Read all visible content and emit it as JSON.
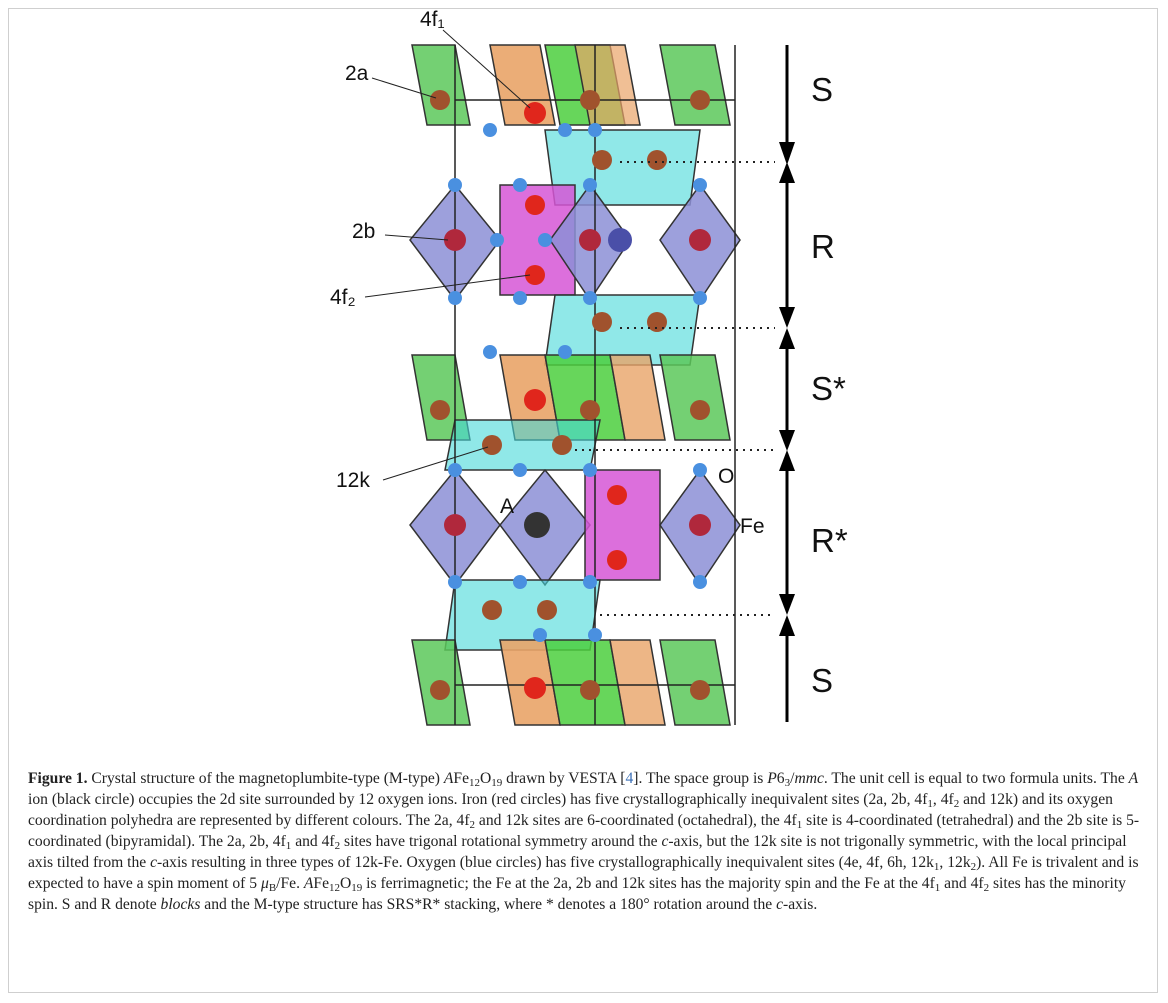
{
  "figure": {
    "site_labels": [
      "4f₁",
      "2a",
      "2b",
      "4f₂",
      "12k",
      "A",
      "O",
      "Fe"
    ],
    "block_labels": [
      "S",
      "R",
      "S*",
      "R*",
      "S"
    ],
    "caption": [
      {
        "text": "Figure 1.",
        "style": "b"
      },
      " Crystal structure of the magnetoplumbite-type (M-type) ",
      {
        "text": "A",
        "style": "i"
      },
      "Fe",
      {
        "text": "12",
        "style": "sub"
      },
      "O",
      {
        "text": "19",
        "style": "sub"
      },
      " drawn by VESTA [",
      {
        "text": "4",
        "style": "link"
      },
      "]. The space group is ",
      {
        "text": "P",
        "style": "i"
      },
      "6",
      {
        "text": "3",
        "style": "sub"
      },
      "/",
      {
        "text": "mmc",
        "style": "i"
      },
      ". The unit cell is equal to two formula units. The ",
      {
        "text": "A",
        "style": "i"
      },
      " ion (black circle) occupies the 2d site surrounded by 12 oxygen ions. Iron (red circles) has five crystallographically inequivalent sites (2a, 2b, 4f",
      {
        "text": "1",
        "style": "sub"
      },
      ", 4f",
      {
        "text": "2",
        "style": "sub"
      },
      " and 12k) and its oxygen coordination polyhedra are represented by different colours. The 2a, 4f",
      {
        "text": "2",
        "style": "sub"
      },
      " and 12k sites are 6-coordinated (octahedral), the 4f",
      {
        "text": "1",
        "style": "sub"
      },
      " site is 4-coordinated (tetrahedral) and the 2b site is 5-coordinated (bipyramidal). The 2a, 2b, 4f",
      {
        "text": "1",
        "style": "sub"
      },
      " and 4f",
      {
        "text": "2",
        "style": "sub"
      },
      " sites have trigonal rotational symmetry around the ",
      {
        "text": "c",
        "style": "i"
      },
      "-axis, but the 12k site is not trigonally symmetric, with the local principal axis tilted from the ",
      {
        "text": "c",
        "style": "i"
      },
      "-axis resulting in three types of 12k-Fe. Oxygen (blue circles) has five crystallographically inequivalent sites (4e, 4f, 6h, 12k",
      {
        "text": "1",
        "style": "sub"
      },
      ", 12k",
      {
        "text": "2",
        "style": "sub"
      },
      "). All Fe is trivalent and is expected to have a spin moment of 5 ",
      {
        "text": "μ",
        "style": "i"
      },
      {
        "text": "B",
        "style": "sub"
      },
      "/Fe. ",
      {
        "text": "A",
        "style": "i"
      },
      "Fe",
      {
        "text": "12",
        "style": "sub"
      },
      "O",
      {
        "text": "19",
        "style": "sub"
      },
      " is ferrimagnetic; the Fe at the 2a, 2b and 12k sites has the majority spin and the Fe at the 4f",
      {
        "text": "1",
        "style": "sub"
      },
      " and 4f",
      {
        "text": "2",
        "style": "sub"
      },
      " sites has the minority spin. S and R denote ",
      {
        "text": "blocks",
        "style": "i"
      },
      " and the M-type structure has SRS*R* stacking, where * denotes a 180° rotation around the ",
      {
        "text": "c",
        "style": "i"
      },
      "-axis."
    ]
  }
}
